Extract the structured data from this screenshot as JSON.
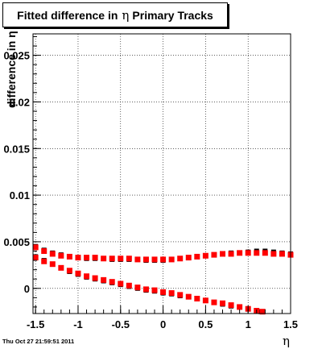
{
  "title": {
    "prefix": "Fitted difference in",
    "symbol": "η",
    "suffix": "Primary Tracks"
  },
  "footer": {
    "date": "Thu Oct 27 21:59:51 2011"
  },
  "chart_data": {
    "type": "scatter",
    "title": "Fitted difference in η Primary Tracks",
    "xlabel": "η",
    "ylabel": "difference in η",
    "xlim": [
      -1.53,
      1.5
    ],
    "ylim": [
      -0.0027,
      0.0273
    ],
    "x_ticks": [
      -1.5,
      -1,
      -0.5,
      0,
      0.5,
      1,
      1.5
    ],
    "x_tick_labels": [
      "-1.5",
      "-1",
      "-0.5",
      "0",
      "0.5",
      "1",
      "1.5"
    ],
    "y_ticks": [
      0,
      0.005,
      0.01,
      0.015,
      0.02,
      0.025
    ],
    "y_tick_labels": [
      "0",
      "0.005",
      "0.01",
      "0.015",
      "0.02",
      "0.025"
    ],
    "grid": true,
    "colors": {
      "black_series": "#000000",
      "red_series": "#ff0000"
    },
    "series": [
      {
        "color": "black",
        "points": [
          [
            -1.5,
            0.0045
          ],
          [
            -1.4,
            0.0041
          ],
          [
            -1.3,
            0.0038
          ],
          [
            -1.2,
            0.0036
          ],
          [
            -1.1,
            0.0034
          ],
          [
            -1.0,
            0.0033
          ],
          [
            -0.9,
            0.0032
          ],
          [
            -0.8,
            0.0032
          ],
          [
            -0.7,
            0.0032
          ],
          [
            -0.6,
            0.0031
          ],
          [
            -0.5,
            0.0031
          ],
          [
            -0.4,
            0.0031
          ],
          [
            -0.3,
            0.0031
          ],
          [
            -0.2,
            0.003
          ],
          [
            -0.1,
            0.003
          ],
          [
            0.0,
            0.003
          ],
          [
            0.1,
            0.0031
          ],
          [
            0.2,
            0.0032
          ],
          [
            0.3,
            0.0033
          ],
          [
            0.4,
            0.0034
          ],
          [
            0.5,
            0.0035
          ],
          [
            0.6,
            0.0036
          ],
          [
            0.7,
            0.0037
          ],
          [
            0.8,
            0.0038
          ],
          [
            0.9,
            0.0038
          ],
          [
            1.0,
            0.0039
          ],
          [
            1.1,
            0.004
          ],
          [
            1.2,
            0.004
          ],
          [
            1.3,
            0.0039
          ],
          [
            1.4,
            0.0038
          ],
          [
            1.5,
            0.0037
          ],
          [
            -1.5,
            0.0034
          ],
          [
            -1.4,
            0.003
          ],
          [
            -1.3,
            0.0026
          ],
          [
            -1.2,
            0.0022
          ],
          [
            -1.1,
            0.0018
          ],
          [
            -1.0,
            0.0015
          ],
          [
            -0.9,
            0.0012
          ],
          [
            -0.8,
            0.001
          ],
          [
            -0.7,
            0.0008
          ],
          [
            -0.6,
            0.0006
          ],
          [
            -0.5,
            0.0004
          ],
          [
            -0.4,
            0.0002
          ],
          [
            -0.3,
            0.0
          ],
          [
            -0.2,
            -0.0002
          ],
          [
            -0.1,
            -0.0003
          ],
          [
            0.0,
            -0.0005
          ],
          [
            0.1,
            -0.0006
          ],
          [
            0.2,
            -0.0008
          ],
          [
            0.3,
            -0.0009
          ],
          [
            0.4,
            -0.0011
          ],
          [
            0.5,
            -0.0013
          ],
          [
            0.6,
            -0.0015
          ],
          [
            0.7,
            -0.0017
          ],
          [
            0.8,
            -0.0019
          ],
          [
            0.9,
            -0.002
          ],
          [
            1.0,
            -0.0022
          ],
          [
            1.1,
            -0.0024
          ],
          [
            1.15,
            -0.0025
          ]
        ]
      },
      {
        "color": "red",
        "points": [
          [
            -1.5,
            0.0044
          ],
          [
            -1.4,
            0.004
          ],
          [
            -1.3,
            0.0037
          ],
          [
            -1.2,
            0.0035
          ],
          [
            -1.1,
            0.0034
          ],
          [
            -1.0,
            0.0033
          ],
          [
            -0.9,
            0.0033
          ],
          [
            -0.8,
            0.0033
          ],
          [
            -0.7,
            0.0032
          ],
          [
            -0.6,
            0.0032
          ],
          [
            -0.5,
            0.0032
          ],
          [
            -0.4,
            0.0032
          ],
          [
            -0.3,
            0.0031
          ],
          [
            -0.2,
            0.0031
          ],
          [
            -0.1,
            0.0031
          ],
          [
            0.0,
            0.0031
          ],
          [
            0.1,
            0.0031
          ],
          [
            0.2,
            0.0032
          ],
          [
            0.3,
            0.0033
          ],
          [
            0.4,
            0.0034
          ],
          [
            0.5,
            0.0035
          ],
          [
            0.6,
            0.0036
          ],
          [
            0.7,
            0.0037
          ],
          [
            0.8,
            0.0037
          ],
          [
            0.9,
            0.0038
          ],
          [
            1.0,
            0.0038
          ],
          [
            1.1,
            0.0038
          ],
          [
            1.2,
            0.0038
          ],
          [
            1.3,
            0.0037
          ],
          [
            1.4,
            0.0037
          ],
          [
            1.5,
            0.0036
          ],
          [
            -1.5,
            0.0033
          ],
          [
            -1.4,
            0.0029
          ],
          [
            -1.3,
            0.0026
          ],
          [
            -1.2,
            0.0022
          ],
          [
            -1.1,
            0.0019
          ],
          [
            -1.0,
            0.0016
          ],
          [
            -0.9,
            0.0013
          ],
          [
            -0.8,
            0.0011
          ],
          [
            -0.7,
            0.0009
          ],
          [
            -0.6,
            0.0007
          ],
          [
            -0.5,
            0.0005
          ],
          [
            -0.4,
            0.0003
          ],
          [
            -0.3,
            0.0001
          ],
          [
            -0.2,
            -0.0001
          ],
          [
            -0.1,
            -0.0002
          ],
          [
            0.0,
            -0.0004
          ],
          [
            0.1,
            -0.0005
          ],
          [
            0.2,
            -0.0007
          ],
          [
            0.3,
            -0.0009
          ],
          [
            0.4,
            -0.0011
          ],
          [
            0.5,
            -0.0013
          ],
          [
            0.6,
            -0.0015
          ],
          [
            0.7,
            -0.0016
          ],
          [
            0.8,
            -0.0018
          ],
          [
            0.9,
            -0.002
          ],
          [
            1.0,
            -0.0022
          ],
          [
            1.1,
            -0.0024
          ],
          [
            1.17,
            -0.0025
          ]
        ]
      }
    ]
  }
}
